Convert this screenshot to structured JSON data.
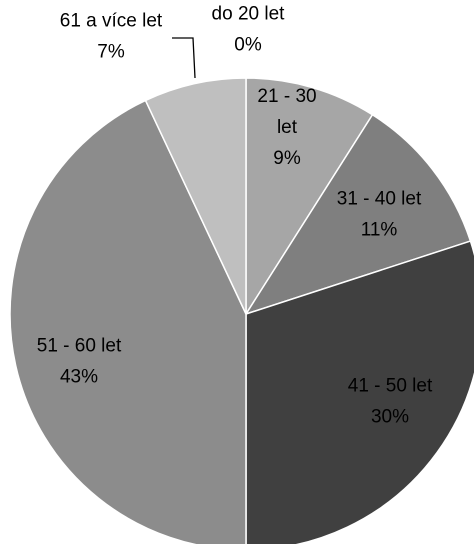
{
  "chart_data": {
    "type": "pie",
    "title": "",
    "categories": [
      "do 20 let",
      "21 - 30 let",
      "31 - 40 let",
      "41 - 50 let",
      "51 - 60 let",
      "61 a více let"
    ],
    "values": [
      0,
      9,
      11,
      30,
      43,
      7
    ],
    "percent_labels": [
      "0%",
      "9%",
      "11%",
      "30%",
      "43%",
      "7%"
    ],
    "label_lines": [
      [
        "do 20 let",
        "0%"
      ],
      [
        "21 - 30",
        "let",
        "9%"
      ],
      [
        "31 - 40 let",
        "11%"
      ],
      [
        "41 - 50 let",
        "30%"
      ],
      [
        "51 - 60 let",
        "43%"
      ],
      [
        "61 a více let",
        "7%"
      ]
    ],
    "colors": [
      "#a6a6a6",
      "#a6a6a6",
      "#7f7f7f",
      "#404040",
      "#8c8c8c",
      "#bfbfbf"
    ],
    "legend": "none",
    "start_angle_deg": 0,
    "direction": "clockwise"
  }
}
